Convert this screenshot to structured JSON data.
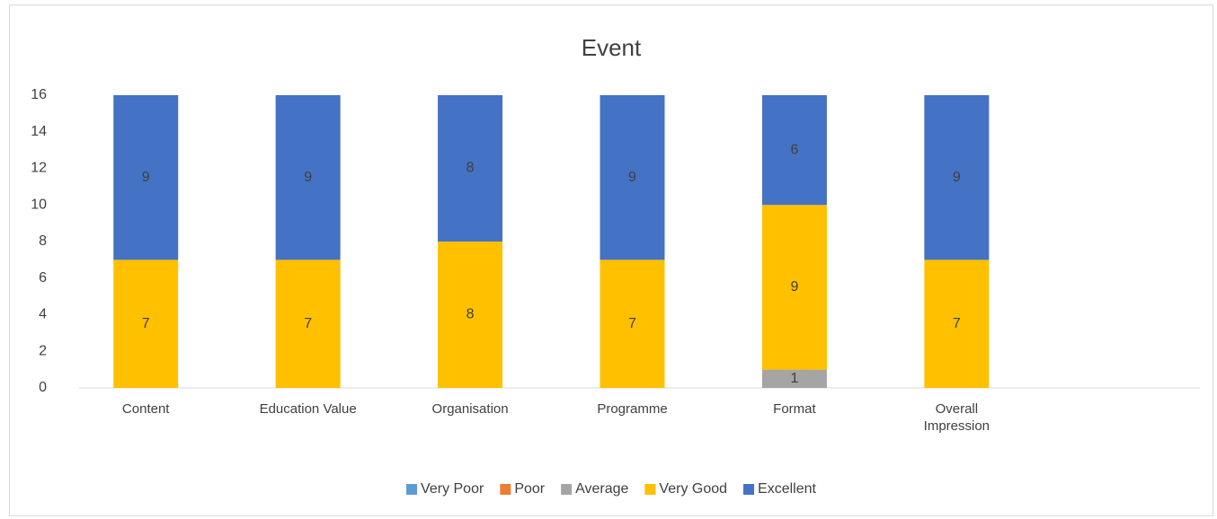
{
  "chart_data": {
    "type": "stacked_bar",
    "title": "Event",
    "categories": [
      "Content",
      "Education Value",
      "Organisation",
      "Programme",
      "Format",
      "Overall Impression",
      null
    ],
    "series": [
      {
        "name": "Very Poor",
        "color": "#5b9bd5",
        "values": [
          0,
          0,
          0,
          0,
          0,
          0,
          null
        ]
      },
      {
        "name": "Poor",
        "color": "#ed7d31",
        "values": [
          0,
          0,
          0,
          0,
          0,
          0,
          null
        ]
      },
      {
        "name": "Average",
        "color": "#a5a5a5",
        "values": [
          0,
          0,
          0,
          0,
          1,
          0,
          null
        ]
      },
      {
        "name": "Very Good",
        "color": "#ffc000",
        "values": [
          7,
          7,
          8,
          7,
          9,
          7,
          null
        ]
      },
      {
        "name": "Excellent",
        "color": "#4472c4",
        "values": [
          9,
          9,
          8,
          9,
          6,
          9,
          null
        ]
      }
    ],
    "ylim": [
      0,
      16
    ],
    "yticks": [
      0,
      2,
      4,
      6,
      8,
      10,
      12,
      14,
      16
    ],
    "grid": false,
    "legend": "bottom"
  }
}
